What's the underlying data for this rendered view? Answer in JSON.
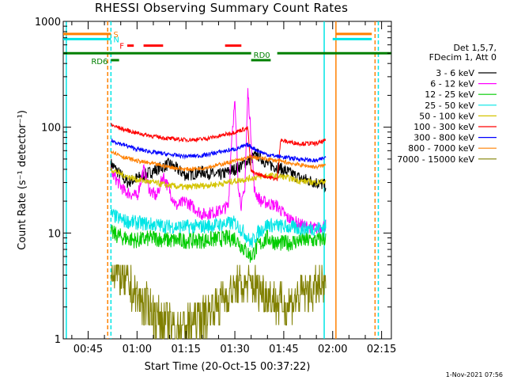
{
  "chart_data": {
    "type": "line",
    "title": "RHESSI Observing Summary Count Rates",
    "xlabel": "Start Time (20-Oct-15 00:37:22)",
    "ylabel": "Count Rate (s⁻¹ detector⁻¹)",
    "y_scale": "log",
    "ylim": [
      1,
      1000
    ],
    "xlim_minutes": [
      37.37,
      138.0
    ],
    "y_ticks": [
      "1",
      "10",
      "100",
      "1000"
    ],
    "x_ticks": [
      {
        "label": "00:45",
        "minute": 45
      },
      {
        "label": "01:00",
        "minute": 60
      },
      {
        "label": "01:15",
        "minute": 75
      },
      {
        "label": "01:30",
        "minute": 90
      },
      {
        "label": "01:45",
        "minute": 105
      },
      {
        "label": "02:00",
        "minute": 120
      },
      {
        "label": "02:15",
        "minute": 135
      }
    ],
    "legend_header": [
      "Det 1,5,7,",
      "FDecim 1, Att 0"
    ],
    "legend_position": "right",
    "series": [
      {
        "name": "3 - 6 keV",
        "color": "#000000",
        "approx": [
          [
            52,
            45
          ],
          [
            57,
            30
          ],
          [
            62,
            35
          ],
          [
            66,
            40
          ],
          [
            70,
            45
          ],
          [
            75,
            35
          ],
          [
            80,
            38
          ],
          [
            85,
            35
          ],
          [
            90,
            40
          ],
          [
            94,
            48
          ],
          [
            97,
            55
          ],
          [
            100,
            45
          ],
          [
            103,
            42
          ],
          [
            106,
            38
          ],
          [
            110,
            33
          ],
          [
            115,
            30
          ],
          [
            118,
            28
          ]
        ]
      },
      {
        "name": "6 - 12 keV",
        "color": "#ff00ff",
        "approx": [
          [
            52,
            38
          ],
          [
            56,
            25
          ],
          [
            60,
            22
          ],
          [
            62,
            40
          ],
          [
            64,
            25
          ],
          [
            66,
            22
          ],
          [
            68,
            35
          ],
          [
            72,
            18
          ],
          [
            75,
            20
          ],
          [
            80,
            15
          ],
          [
            85,
            16
          ],
          [
            88,
            18
          ],
          [
            89,
            80
          ],
          [
            90,
            170
          ],
          [
            91,
            30
          ],
          [
            92,
            18
          ],
          [
            93,
            25
          ],
          [
            94,
            220
          ],
          [
            95,
            80
          ],
          [
            96,
            25
          ],
          [
            98,
            20
          ],
          [
            103,
            18
          ],
          [
            106,
            14
          ],
          [
            110,
            12
          ],
          [
            115,
            11
          ],
          [
            118,
            12
          ]
        ]
      },
      {
        "name": "12 - 25 keV",
        "color": "#00cc00",
        "approx": [
          [
            52,
            10
          ],
          [
            56,
            9
          ],
          [
            60,
            8.5
          ],
          [
            65,
            9
          ],
          [
            70,
            8.5
          ],
          [
            75,
            8.5
          ],
          [
            80,
            8.5
          ],
          [
            85,
            8.8
          ],
          [
            90,
            9
          ],
          [
            93,
            7
          ],
          [
            95,
            6
          ],
          [
            97,
            7.5
          ],
          [
            100,
            9
          ],
          [
            103,
            8
          ],
          [
            106,
            8
          ],
          [
            110,
            8.5
          ],
          [
            115,
            8.5
          ],
          [
            118,
            9
          ]
        ]
      },
      {
        "name": "25 - 50 keV",
        "color": "#00e5e5",
        "approx": [
          [
            52,
            15
          ],
          [
            56,
            13
          ],
          [
            60,
            12.5
          ],
          [
            65,
            12
          ],
          [
            70,
            11.5
          ],
          [
            75,
            11.5
          ],
          [
            80,
            11.5
          ],
          [
            85,
            12
          ],
          [
            90,
            12.5
          ],
          [
            93,
            10
          ],
          [
            95,
            8
          ],
          [
            97,
            10
          ],
          [
            100,
            12
          ],
          [
            105,
            11.5
          ],
          [
            110,
            11
          ],
          [
            115,
            11
          ],
          [
            118,
            11.5
          ]
        ]
      },
      {
        "name": "50 - 100 keV",
        "color": "#d4c400",
        "approx": [
          [
            52,
            40
          ],
          [
            56,
            35
          ],
          [
            60,
            32
          ],
          [
            65,
            30
          ],
          [
            70,
            28
          ],
          [
            75,
            27
          ],
          [
            80,
            28
          ],
          [
            85,
            29
          ],
          [
            90,
            31
          ],
          [
            95,
            33
          ],
          [
            100,
            35
          ],
          [
            105,
            34
          ],
          [
            110,
            31
          ],
          [
            115,
            30
          ],
          [
            118,
            31
          ]
        ]
      },
      {
        "name": "100 - 300 keV",
        "color": "#ff0000",
        "approx": [
          [
            52,
            105
          ],
          [
            56,
            95
          ],
          [
            60,
            88
          ],
          [
            65,
            82
          ],
          [
            70,
            78
          ],
          [
            75,
            76
          ],
          [
            80,
            77
          ],
          [
            85,
            82
          ],
          [
            90,
            90
          ],
          [
            94,
            98
          ],
          [
            95,
            38
          ],
          [
            97,
            36
          ],
          [
            100,
            34
          ],
          [
            103,
            32
          ],
          [
            104,
            75
          ],
          [
            106,
            73
          ],
          [
            110,
            70
          ],
          [
            115,
            70
          ],
          [
            118,
            75
          ]
        ]
      },
      {
        "name": "300 - 800 keV",
        "color": "#0000ff",
        "approx": [
          [
            52,
            75
          ],
          [
            56,
            68
          ],
          [
            60,
            62
          ],
          [
            65,
            58
          ],
          [
            70,
            55
          ],
          [
            75,
            53
          ],
          [
            80,
            54
          ],
          [
            85,
            58
          ],
          [
            90,
            62
          ],
          [
            94,
            68
          ],
          [
            97,
            60
          ],
          [
            100,
            55
          ],
          [
            105,
            52
          ],
          [
            110,
            50
          ],
          [
            115,
            48
          ],
          [
            118,
            52
          ]
        ]
      },
      {
        "name": "800 - 7000 keV",
        "color": "#ff8000",
        "approx": [
          [
            52,
            60
          ],
          [
            56,
            52
          ],
          [
            60,
            48
          ],
          [
            65,
            45
          ],
          [
            70,
            42
          ],
          [
            75,
            40
          ],
          [
            80,
            41
          ],
          [
            85,
            44
          ],
          [
            90,
            48
          ],
          [
            95,
            52
          ],
          [
            100,
            50
          ],
          [
            105,
            47
          ],
          [
            110,
            44
          ],
          [
            115,
            42
          ],
          [
            118,
            44
          ]
        ]
      },
      {
        "name": "7000 - 15000 keV",
        "color": "#808000",
        "approx": [
          [
            52,
            5
          ],
          [
            56,
            3.5
          ],
          [
            60,
            2.5
          ],
          [
            65,
            1.8
          ],
          [
            70,
            1.3
          ],
          [
            75,
            1.3
          ],
          [
            80,
            1.6
          ],
          [
            85,
            2.2
          ],
          [
            90,
            3
          ],
          [
            95,
            3.3
          ],
          [
            100,
            2.6
          ],
          [
            105,
            2
          ],
          [
            110,
            2.6
          ],
          [
            115,
            3
          ],
          [
            118,
            3
          ]
        ]
      }
    ],
    "state_bars": [
      {
        "label": "S",
        "color": "#ff8000",
        "y": 760,
        "segments": [
          [
            37.37,
            52
          ],
          [
            121,
            132
          ]
        ]
      },
      {
        "label": "N",
        "color": "#00e5e5",
        "y": 680,
        "segments": [
          [
            37.37,
            52
          ],
          [
            120,
            132
          ]
        ]
      },
      {
        "label": "F",
        "color": "#ff0000",
        "y": 590,
        "segments": [
          [
            57,
            59
          ],
          [
            62,
            68
          ],
          [
            87,
            92
          ]
        ]
      },
      {
        "label": "RD0",
        "color": "#008000",
        "y": 500,
        "segments": [
          [
            37.37,
            95
          ],
          [
            103,
            138
          ]
        ]
      },
      {
        "label": "RD6",
        "color": "#008000",
        "y": 430,
        "segments": [
          [
            52,
            54.5
          ],
          [
            95,
            101
          ]
        ]
      }
    ],
    "vertical_markers": [
      {
        "minute": 38.3,
        "color": "#00e5e5",
        "style": "solid"
      },
      {
        "minute": 51.0,
        "color": "#ff8000",
        "style": "dashed"
      },
      {
        "minute": 52.0,
        "color": "#00e5e5",
        "style": "dashed"
      },
      {
        "minute": 117.4,
        "color": "#00e5e5",
        "style": "solid"
      },
      {
        "minute": 121.0,
        "color": "#ff8000",
        "style": "solid"
      },
      {
        "minute": 133.0,
        "color": "#ff8000",
        "style": "dashed"
      },
      {
        "minute": 134.0,
        "color": "#00e5e5",
        "style": "dashed"
      }
    ]
  },
  "footer": {
    "stamp": "1-Nov-2021 07:56"
  }
}
